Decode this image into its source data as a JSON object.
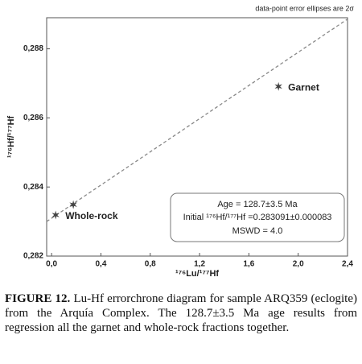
{
  "chart_data": {
    "type": "scatter",
    "note": "data-point error ellipses are 2σ",
    "xlabel": "¹⁷⁶Lu/¹⁷⁷Hf",
    "ylabel": "¹⁷⁶Hf/¹⁷⁷Hf",
    "x": [
      0.033,
      0.176,
      1.84
    ],
    "values": [
      0.28319,
      0.28349,
      0.28691
    ],
    "point_labels": [
      "Whole-rock",
      null,
      "Garnet"
    ],
    "color": "#444444",
    "fit_line": {
      "x": [
        -0.04,
        2.4
      ],
      "values": [
        0.283,
        0.28886
      ],
      "color": "#888888"
    },
    "xlim": [
      -0.04,
      2.4
    ],
    "xticks": [
      {
        "value": 0,
        "label": "0,0"
      },
      {
        "value": 0.4,
        "label": "0,4"
      },
      {
        "value": 0.8,
        "label": "0,8"
      },
      {
        "value": 1.2,
        "label": "1,2"
      },
      {
        "value": 1.6,
        "label": "1,6"
      },
      {
        "value": 2.0,
        "label": "2,0"
      },
      {
        "value": 2.4,
        "label": "2,4"
      }
    ],
    "ylim": [
      0.282,
      0.2889
    ],
    "yticks": [
      {
        "value": 0.282,
        "label": "0,282"
      },
      {
        "value": 0.284,
        "label": "0,284"
      },
      {
        "value": 0.286,
        "label": "0,286"
      },
      {
        "value": 0.288,
        "label": "0,288"
      }
    ],
    "results": [
      "Age = 128.7±3.5 Ma",
      "Initial ¹⁷⁶Hf/¹⁷⁷Hf =0.283091±0.000083",
      "MSWD = 4.0"
    ],
    "grid": false
  },
  "caption": {
    "label": "FIGURE 12.",
    "text": "Lu-Hf errorchrone diagram for sample ARQ359 (eclogite) from the Arquía Complex. The 128.7±3.5 Ma age results from regression all the garnet and whole-rock fractions together."
  }
}
